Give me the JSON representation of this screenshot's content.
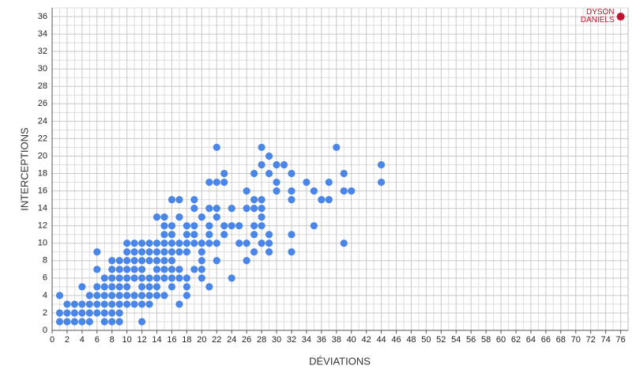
{
  "chart_data": {
    "type": "scatter",
    "xlabel": "DÉVIATIONS",
    "ylabel": "INTERCEPTIONS",
    "color": "#4a86e8",
    "x": [
      1,
      1,
      1,
      2,
      2,
      2,
      3,
      3,
      3,
      4,
      4,
      4,
      4,
      5,
      5,
      5,
      5,
      6,
      6,
      6,
      6,
      6,
      6,
      7,
      7,
      7,
      7,
      7,
      7,
      8,
      8,
      8,
      8,
      8,
      8,
      8,
      8,
      9,
      9,
      9,
      9,
      9,
      9,
      9,
      9,
      10,
      10,
      10,
      10,
      10,
      10,
      10,
      10,
      11,
      11,
      11,
      11,
      11,
      11,
      11,
      12,
      12,
      12,
      12,
      12,
      12,
      12,
      12,
      12,
      13,
      13,
      13,
      13,
      13,
      13,
      13,
      14,
      14,
      14,
      14,
      14,
      14,
      14,
      14,
      15,
      15,
      15,
      15,
      15,
      15,
      15,
      15,
      15,
      16,
      16,
      16,
      16,
      16,
      16,
      16,
      16,
      16,
      17,
      17,
      17,
      17,
      17,
      17,
      17,
      18,
      18,
      18,
      18,
      18,
      18,
      18,
      19,
      19,
      19,
      19,
      19,
      19,
      20,
      20,
      20,
      20,
      20,
      20,
      21,
      21,
      21,
      21,
      21,
      21,
      22,
      22,
      22,
      22,
      22,
      22,
      23,
      23,
      23,
      23,
      24,
      24,
      24,
      25,
      25,
      26,
      26,
      26,
      26,
      27,
      27,
      27,
      27,
      27,
      27,
      28,
      28,
      28,
      28,
      28,
      28,
      28,
      29,
      29,
      29,
      29,
      29,
      30,
      30,
      30,
      31,
      32,
      32,
      32,
      32,
      32,
      34,
      35,
      35,
      36,
      37,
      37,
      38,
      39,
      39,
      39,
      40,
      44,
      44
    ],
    "values": [
      4,
      2,
      1,
      3,
      2,
      1,
      3,
      2,
      1,
      5,
      3,
      2,
      1,
      4,
      3,
      2,
      1,
      9,
      7,
      5,
      4,
      3,
      2,
      6,
      5,
      4,
      3,
      2,
      1,
      8,
      7,
      6,
      5,
      4,
      3,
      2,
      1,
      8,
      7,
      6,
      5,
      4,
      3,
      2,
      1,
      10,
      9,
      8,
      7,
      6,
      5,
      4,
      3,
      10,
      9,
      8,
      7,
      6,
      4,
      3,
      10,
      9,
      8,
      7,
      6,
      5,
      4,
      3,
      1,
      10,
      9,
      8,
      6,
      5,
      4,
      3,
      13,
      10,
      9,
      8,
      7,
      6,
      5,
      4,
      13,
      12,
      11,
      10,
      9,
      8,
      7,
      6,
      4,
      15,
      12,
      11,
      10,
      9,
      8,
      7,
      6,
      5,
      15,
      13,
      10,
      9,
      7,
      6,
      3,
      12,
      11,
      10,
      9,
      6,
      5,
      4,
      15,
      14,
      12,
      11,
      10,
      7,
      13,
      10,
      9,
      8,
      7,
      6,
      17,
      14,
      12,
      11,
      10,
      5,
      21,
      17,
      14,
      13,
      10,
      8,
      18,
      17,
      12,
      11,
      14,
      12,
      6,
      12,
      10,
      16,
      14,
      10,
      8,
      18,
      15,
      14,
      12,
      11,
      9,
      21,
      19,
      15,
      14,
      13,
      12,
      10,
      20,
      18,
      11,
      10,
      9,
      19,
      17,
      16,
      19,
      18,
      16,
      15,
      11,
      9,
      17,
      16,
      12,
      15,
      17,
      15,
      21,
      18,
      16,
      10,
      16,
      19,
      17
    ],
    "highlight": {
      "label": "DYSON DANIELS",
      "x": 76,
      "y": 36,
      "color": "#c8102e"
    },
    "xlim": [
      0,
      77
    ],
    "ylim": [
      0,
      37
    ],
    "xticks": [
      0,
      2,
      4,
      6,
      8,
      10,
      12,
      14,
      16,
      18,
      20,
      22,
      24,
      26,
      28,
      30,
      32,
      34,
      36,
      38,
      40,
      42,
      44,
      46,
      48,
      50,
      52,
      54,
      56,
      58,
      60,
      62,
      64,
      66,
      68,
      70,
      72,
      74,
      76
    ],
    "yticks": [
      0,
      2,
      4,
      6,
      8,
      10,
      12,
      14,
      16,
      18,
      20,
      22,
      24,
      26,
      28,
      30,
      32,
      34,
      36
    ],
    "grid": true
  }
}
